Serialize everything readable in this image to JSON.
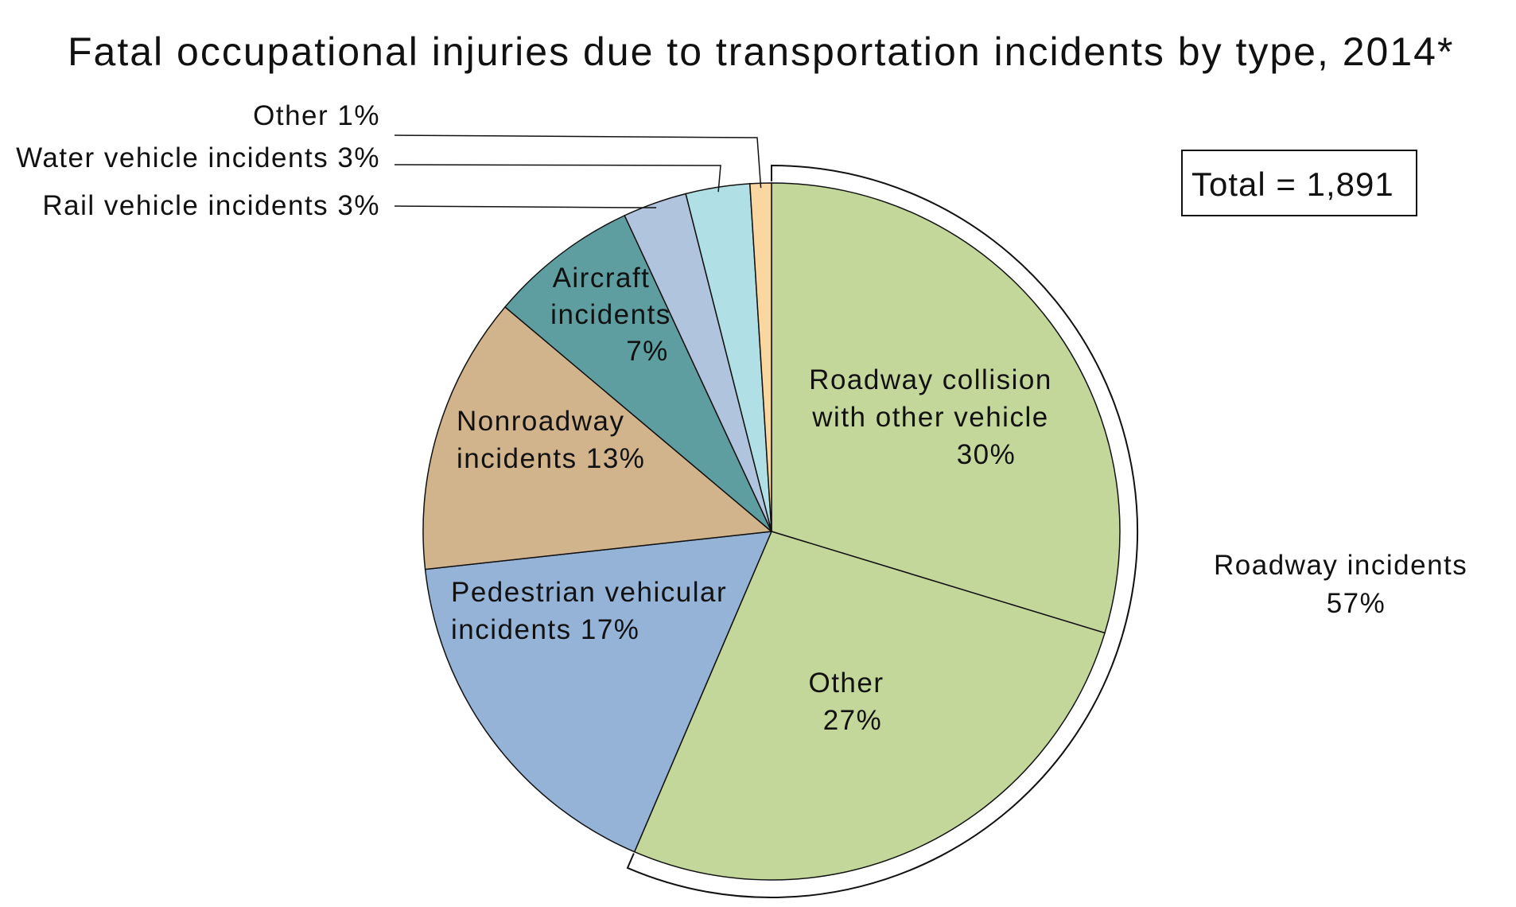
{
  "chart_data": {
    "type": "pie",
    "title": "Fatal occupational injuries due to transportation incidents by type, 2014*",
    "total_label": "Total = 1,891",
    "slices": [
      {
        "name": "Roadway collision with other vehicle",
        "value": 30,
        "label_lines": [
          "Roadway collision",
          "with other vehicle",
          "30%"
        ],
        "color": "#c4d79b"
      },
      {
        "name": "Other",
        "value": 27,
        "label_lines": [
          "Other",
          "27%"
        ],
        "color": "#c4d79b"
      },
      {
        "name": "Pedestrian vehicular incidents",
        "value": 17,
        "label_lines": [
          "Pedestrian vehicular",
          "incidents 17%"
        ],
        "color": "#95b3d7"
      },
      {
        "name": "Nonroadway incidents",
        "value": 13,
        "label_lines": [
          "Nonroadway",
          "incidents 13%"
        ],
        "color": "#d2b48c"
      },
      {
        "name": "Aircraft incidents",
        "value": 7,
        "label_lines": [
          "Aircraft",
          "incidents",
          "7%"
        ],
        "color": "#5f9ea0"
      },
      {
        "name": "Rail vehicle incidents",
        "value": 3,
        "label_lines": [
          "Rail vehicle incidents 3%"
        ],
        "color": "#b0c4de"
      },
      {
        "name": "Water vehicle incidents",
        "value": 3,
        "label_lines": [
          "Water vehicle incidents 3%"
        ],
        "color": "#b0e0e6"
      },
      {
        "name": "Other",
        "value": 1,
        "label_lines": [
          "Other 1%"
        ],
        "color": "#fad7a0"
      }
    ],
    "group": {
      "name": "Roadway incidents",
      "value": 57,
      "label_lines": [
        "Roadway incidents",
        "57%"
      ]
    }
  }
}
